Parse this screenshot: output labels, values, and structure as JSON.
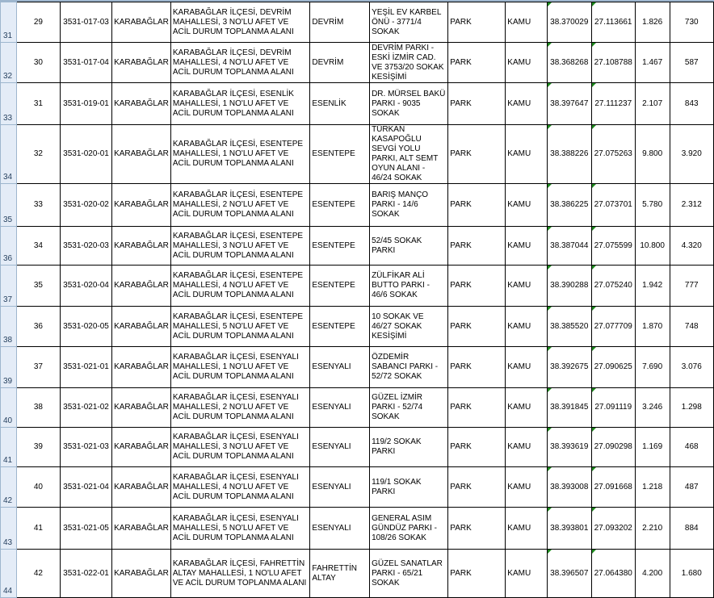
{
  "spreadsheet": {
    "rows": [
      {
        "row": "31",
        "no": "29",
        "code": "3531-017-03",
        "district": "KARABAĞLAR",
        "name": "KARABAĞLAR İLÇESİ, DEVRİM MAHALLESİ, 3 NO'LU AFET VE ACİL DURUM TOPLANMA ALANI",
        "neighborhood": "DEVRİM",
        "location": "YEŞİL EV KARBEL ÖNÜ  - 3771/4 SOKAK",
        "type": "PARK",
        "owner": "KAMU",
        "lat": "38.370029",
        "lon": "27.113661",
        "area": "1.826",
        "capacity": "730"
      },
      {
        "row": "32",
        "no": "30",
        "code": "3531-017-04",
        "district": "KARABAĞLAR",
        "name": "KARABAĞLAR İLÇESİ, DEVRİM MAHALLESİ, 4 NO'LU AFET VE ACİL DURUM TOPLANMA ALANI",
        "neighborhood": "DEVRİM",
        "location": "DEVRİM PARKI - ESKİ İZMİR CAD. VE 3753/20 SOKAK KESİŞİMİ",
        "type": "PARK",
        "owner": "KAMU",
        "lat": "38.368268",
        "lon": "27.108788",
        "area": "1.467",
        "capacity": "587"
      },
      {
        "row": "33",
        "no": "31",
        "code": "3531-019-01",
        "district": "KARABAĞLAR",
        "name": "KARABAĞLAR İLÇESİ, ESENLİK MAHALLESİ, 1 NO'LU AFET VE ACİL DURUM TOPLANMA ALANI",
        "neighborhood": "ESENLİK",
        "location": "DR. MÜRSEL BAKÜ PARKI - 9035 SOKAK",
        "type": "PARK",
        "owner": "KAMU",
        "lat": "38.397647",
        "lon": "27.111237",
        "area": "2.107",
        "capacity": "843"
      },
      {
        "row": "34",
        "no": "32",
        "code": "3531-020-01",
        "district": "KARABAĞLAR",
        "name": "KARABAĞLAR İLÇESİ, ESENTEPE MAHALLESİ, 1 NO'LU AFET VE ACİL DURUM TOPLANMA ALANI",
        "neighborhood": "ESENTEPE",
        "location": "TÜRKAN KASAPOĞLU SEVGİ YOLU PARKI, ALT SEMT OYUN ALANI - 46/24 SOKAK",
        "type": "PARK",
        "owner": "KAMU",
        "lat": "38.388226",
        "lon": "27.075263",
        "area": "9.800",
        "capacity": "3.920"
      },
      {
        "row": "35",
        "no": "33",
        "code": "3531-020-02",
        "district": "KARABAĞLAR",
        "name": "KARABAĞLAR İLÇESİ, ESENTEPE MAHALLESİ, 2 NO'LU AFET VE ACİL DURUM TOPLANMA ALANI",
        "neighborhood": "ESENTEPE",
        "location": "BARIŞ MANÇO PARKI - 14/6 SOKAK",
        "type": "PARK",
        "owner": "KAMU",
        "lat": "38.386225",
        "lon": "27.073701",
        "area": "5.780",
        "capacity": "2.312"
      },
      {
        "row": "36",
        "no": "34",
        "code": "3531-020-03",
        "district": "KARABAĞLAR",
        "name": "KARABAĞLAR İLÇESİ, ESENTEPE MAHALLESİ, 3 NO'LU AFET VE ACİL DURUM TOPLANMA ALANI",
        "neighborhood": "ESENTEPE",
        "location": "52/45 SOKAK PARKI",
        "type": "PARK",
        "owner": "KAMU",
        "lat": "38.387044",
        "lon": "27.075599",
        "area": "10.800",
        "capacity": "4.320"
      },
      {
        "row": "37",
        "no": "35",
        "code": "3531-020-04",
        "district": "KARABAĞLAR",
        "name": "KARABAĞLAR İLÇESİ, ESENTEPE MAHALLESİ, 4 NO'LU AFET VE ACİL DURUM TOPLANMA ALANI",
        "neighborhood": "ESENTEPE",
        "location": "ZÜLFİKAR ALİ BUTTO PARKI - 46/6 SOKAK",
        "type": "PARK",
        "owner": "KAMU",
        "lat": "38.390288",
        "lon": "27.075240",
        "area": "1.942",
        "capacity": "777"
      },
      {
        "row": "38",
        "no": "36",
        "code": "3531-020-05",
        "district": "KARABAĞLAR",
        "name": "KARABAĞLAR İLÇESİ, ESENTEPE MAHALLESİ, 5 NO'LU AFET VE ACİL DURUM TOPLANMA ALANI",
        "neighborhood": "ESENTEPE",
        "location": "10 SOKAK VE 46/27 SOKAK KESİŞİMİ",
        "type": "PARK",
        "owner": "KAMU",
        "lat": "38.385520",
        "lon": "27.077709",
        "area": "1.870",
        "capacity": "748"
      },
      {
        "row": "39",
        "no": "37",
        "code": "3531-021-01",
        "district": "KARABAĞLAR",
        "name": "KARABAĞLAR İLÇESİ, ESENYALI MAHALLESİ, 1 NO'LU AFET VE ACİL DURUM TOPLANMA ALANI",
        "neighborhood": "ESENYALI",
        "location": "ÖZDEMİR SABANCI PARKI - 52/72 SOKAK",
        "type": "PARK",
        "owner": "KAMU",
        "lat": "38.392675",
        "lon": "27.090625",
        "area": "7.690",
        "capacity": "3.076"
      },
      {
        "row": "40",
        "no": "38",
        "code": "3531-021-02",
        "district": "KARABAĞLAR",
        "name": "KARABAĞLAR İLÇESİ, ESENYALI MAHALLESİ, 2 NO'LU AFET VE ACİL DURUM TOPLANMA ALANI",
        "neighborhood": "ESENYALI",
        "location": "GÜZEL İZMİR PARKI - 52/74 SOKAK",
        "type": "PARK",
        "owner": "KAMU",
        "lat": "38.391845",
        "lon": "27.091119",
        "area": "3.246",
        "capacity": "1.298"
      },
      {
        "row": "41",
        "no": "39",
        "code": "3531-021-03",
        "district": "KARABAĞLAR",
        "name": "KARABAĞLAR İLÇESİ, ESENYALI MAHALLESİ, 3 NO'LU AFET VE ACİL DURUM TOPLANMA ALANI",
        "neighborhood": "ESENYALI",
        "location": "119/2 SOKAK PARKI",
        "type": "PARK",
        "owner": "KAMU",
        "lat": "38.393619",
        "lon": "27.090298",
        "area": "1.169",
        "capacity": "468"
      },
      {
        "row": "42",
        "no": "40",
        "code": "3531-021-04",
        "district": "KARABAĞLAR",
        "name": "KARABAĞLAR İLÇESİ, ESENYALI MAHALLESİ, 4 NO'LU AFET VE ACİL DURUM TOPLANMA ALANI",
        "neighborhood": "ESENYALI",
        "location": "119/1 SOKAK PARKI",
        "type": "PARK",
        "owner": "KAMU",
        "lat": "38.393008",
        "lon": "27.091668",
        "area": "1.218",
        "capacity": "487"
      },
      {
        "row": "43",
        "no": "41",
        "code": "3531-021-05",
        "district": "KARABAĞLAR",
        "name": "KARABAĞLAR İLÇESİ, ESENYALI MAHALLESİ, 5 NO'LU AFET VE ACİL DURUM TOPLANMA ALANI",
        "neighborhood": "ESENYALI",
        "location": "GENERAL ASIM GÜNDÜZ PARKI - 108/26 SOKAK",
        "type": "PARK",
        "owner": "KAMU",
        "lat": "38.393801",
        "lon": "27.093202",
        "area": "2.210",
        "capacity": "884"
      },
      {
        "row": "44",
        "no": "42",
        "code": "3531-022-01",
        "district": "KARABAĞLAR",
        "name": "KARABAĞLAR İLÇESİ, FAHRETTİN ALTAY MAHALLESİ, 1 NO'LU AFET VE ACİL DURUM TOPLANMA ALANI",
        "neighborhood": "FAHRETTİN ALTAY",
        "location": "GÜZEL SANATLAR PARKI - 65/21 SOKAK",
        "type": "PARK",
        "owner": "KAMU",
        "lat": "38.396507",
        "lon": "27.064380",
        "area": "4.200",
        "capacity": "1.680"
      }
    ],
    "colors": {
      "row_header_bg": "#e4ecf7",
      "error_indicator": "#1e8a1e"
    }
  }
}
